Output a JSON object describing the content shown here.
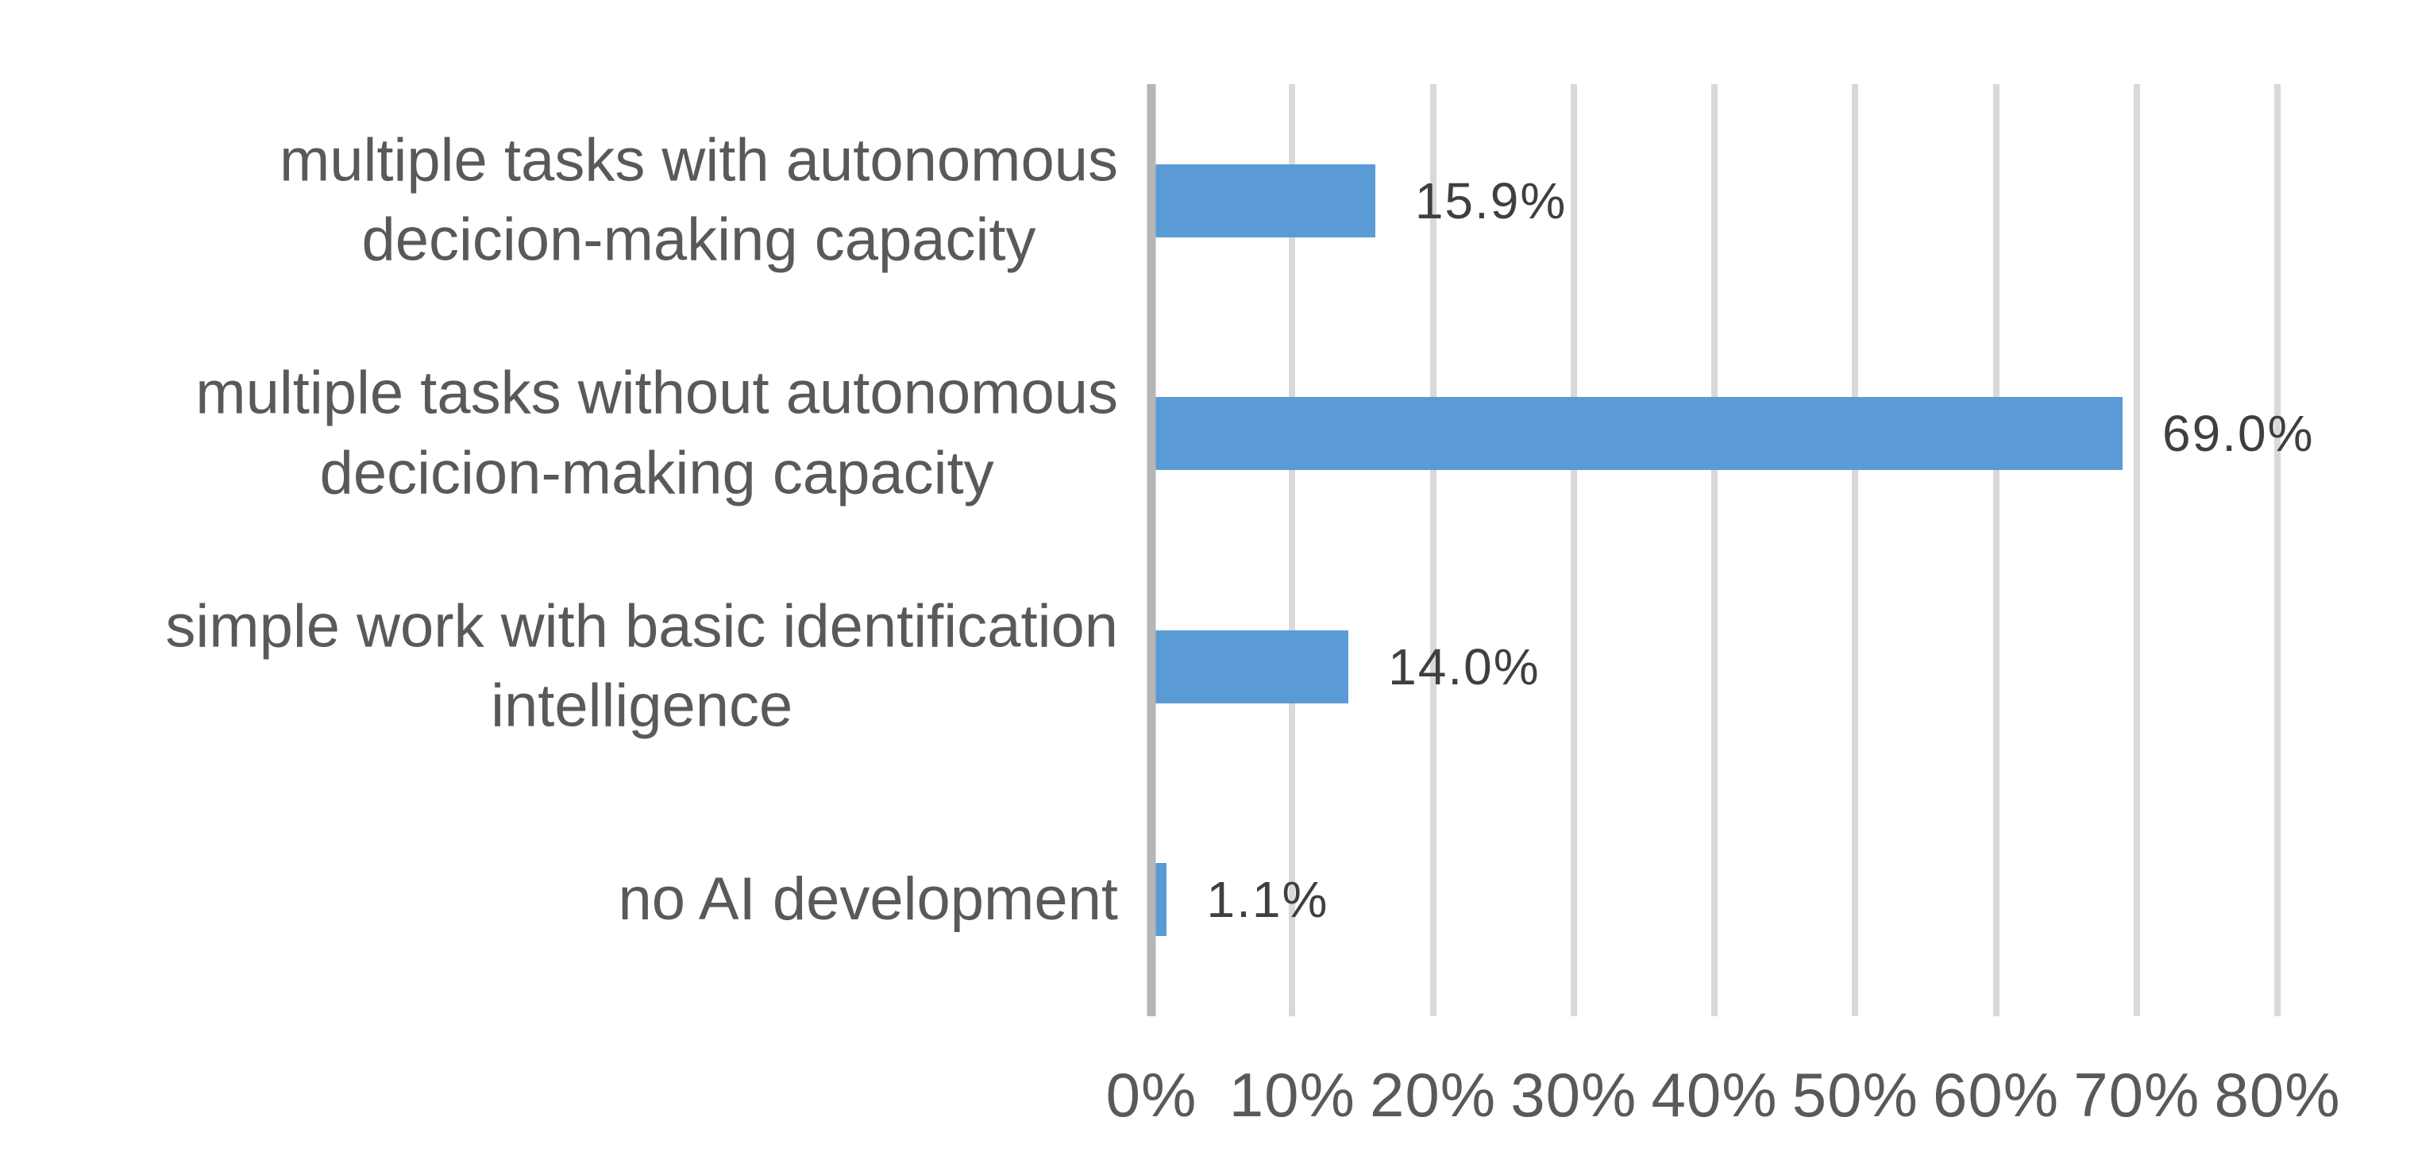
{
  "chart_data": {
    "type": "bar",
    "orientation": "horizontal",
    "title": "",
    "xlabel": "",
    "ylabel": "",
    "categories": [
      "multiple tasks with autonomous decicion-making capacity",
      "multiple tasks without autonomous decicion-making capacity",
      "simple work with basic identification intelligence",
      "no AI development"
    ],
    "category_lines": [
      [
        "multiple tasks with autonomous",
        "decicion-making capacity"
      ],
      [
        "multiple tasks without autonomous",
        "decicion-making capacity"
      ],
      [
        "simple work with basic identification",
        "intelligence"
      ],
      [
        "no AI development"
      ]
    ],
    "values": [
      15.9,
      69.0,
      14.0,
      1.1
    ],
    "value_labels": [
      "15.9%",
      "69.0%",
      "14.0%",
      "1.1%"
    ],
    "x_tick_labels": [
      "0%",
      "10%",
      "20%",
      "30%",
      "40%",
      "50%",
      "60%",
      "70%",
      "80%"
    ],
    "xlim": [
      0,
      80
    ],
    "grid": "vertical-only",
    "legend": "none",
    "colors": {
      "bar": "#5B9BD5",
      "gridline": "#D9D9D9",
      "axis_line": "#B6B6B6",
      "category_text": "#595959",
      "tick_text": "#595959",
      "value_text": "#3F3F3F",
      "background": "#FFFFFF"
    }
  }
}
